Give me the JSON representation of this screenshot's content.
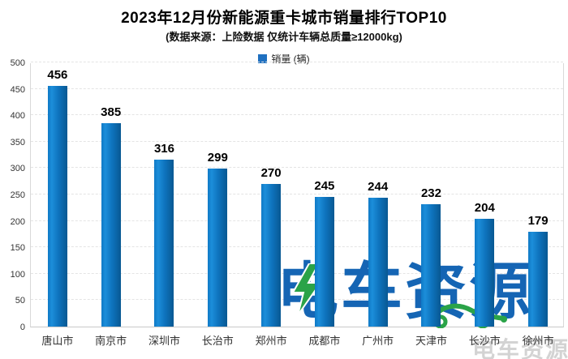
{
  "header": {
    "title": "2023年12月份新能源重卡城市销量排行TOP10",
    "subtitle": "(数据来源：上险数据 仅统计车辆总质量≥12000kg)"
  },
  "legend": {
    "label": "销量 (辆)"
  },
  "chart_data": {
    "type": "bar",
    "title": "2023年12月份新能源重卡城市销量排行TOP10",
    "subtitle": "(数据来源：上险数据 仅统计车辆总质量≥12000kg)",
    "categories": [
      "唐山市",
      "南京市",
      "深圳市",
      "长治市",
      "郑州市",
      "成都市",
      "广州市",
      "天津市",
      "长沙市",
      "徐州市"
    ],
    "values": [
      456,
      385,
      316,
      299,
      270,
      245,
      244,
      232,
      204,
      179
    ],
    "series_name": "销量 (辆)",
    "xlabel": "",
    "ylabel": "",
    "ylim": [
      0,
      500
    ],
    "ytick_step": 50,
    "grid": "horizontal-dashed",
    "legend_position": "top-center",
    "bar_color": "#0e73bd"
  },
  "watermark": {
    "logo_text": "电车资源",
    "logo_chars": [
      "电",
      "车",
      "资",
      "源"
    ],
    "corner_text": "电车资源"
  },
  "colors": {
    "legend_square": "#1f70c0",
    "watermark_blue": "#1565b4",
    "watermark_green": "#2aa348",
    "bar_gradient_light": "#1c8eda",
    "bar_gradient_dark": "#085892"
  }
}
